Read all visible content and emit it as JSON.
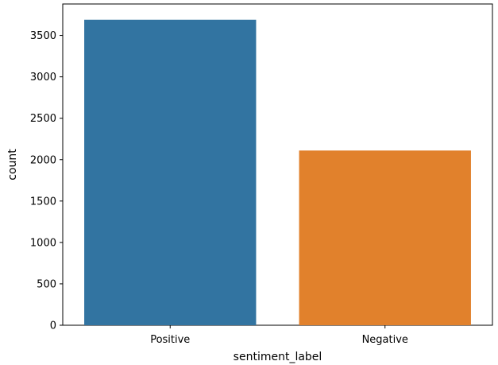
{
  "chart_data": {
    "type": "bar",
    "title": "",
    "xlabel": "sentiment_label",
    "ylabel": "count",
    "categories": [
      "Positive",
      "Negative"
    ],
    "values": [
      3690,
      2110
    ],
    "colors": [
      "#3274a1",
      "#e1812c"
    ],
    "ylim": [
      0,
      3880
    ],
    "yticks": [
      0,
      500,
      1000,
      1500,
      2000,
      2500,
      3000,
      3500
    ],
    "grid": false,
    "legend": "none"
  }
}
